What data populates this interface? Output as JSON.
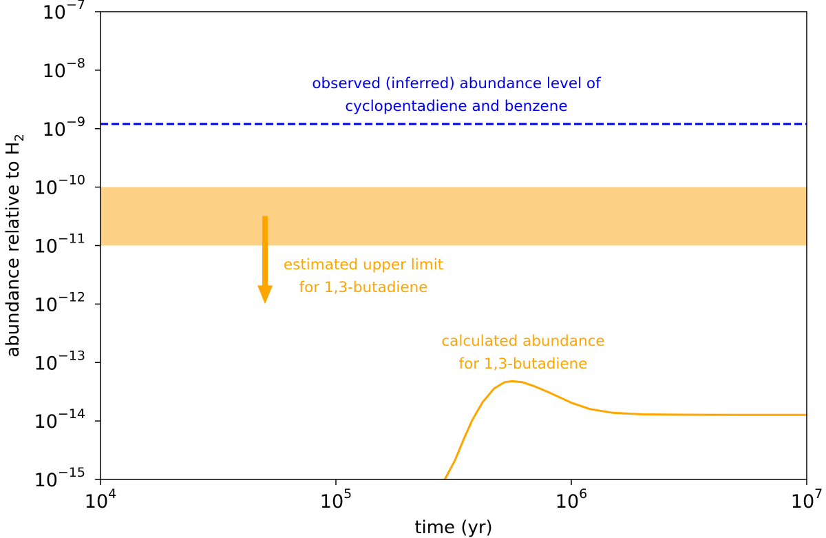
{
  "chart_data": {
    "type": "line",
    "xlabel": "time (yr)",
    "ylabel": "abundance relative to H",
    "ylabel_sub": "2",
    "xscale": "log",
    "yscale": "log",
    "xlim": [
      10000,
      10000000
    ],
    "ylim": [
      1e-15,
      1e-07
    ],
    "grid": false,
    "x_ticks": [
      {
        "value": 10000,
        "base": "10",
        "exp": "4"
      },
      {
        "value": 100000,
        "base": "10",
        "exp": "5"
      },
      {
        "value": 1000000,
        "base": "10",
        "exp": "6"
      },
      {
        "value": 10000000,
        "base": "10",
        "exp": "7"
      }
    ],
    "y_ticks": [
      {
        "value": 1e-07,
        "base": "10",
        "exp": "−7"
      },
      {
        "value": 1e-08,
        "base": "10",
        "exp": "−8"
      },
      {
        "value": 1e-09,
        "base": "10",
        "exp": "−9"
      },
      {
        "value": 1e-10,
        "base": "10",
        "exp": "−10"
      },
      {
        "value": 1e-11,
        "base": "10",
        "exp": "−11"
      },
      {
        "value": 1e-12,
        "base": "10",
        "exp": "−12"
      },
      {
        "value": 1e-13,
        "base": "10",
        "exp": "−13"
      },
      {
        "value": 1e-14,
        "base": "10",
        "exp": "−14"
      },
      {
        "value": 1e-15,
        "base": "10",
        "exp": "−15"
      }
    ],
    "observed_level": {
      "value": 1.2e-09,
      "color": "#0000ee",
      "style": "dashed",
      "label_lines": [
        "observed (inferred) abundance level of",
        "cyclopentadiene and benzene"
      ]
    },
    "upper_limit_band": {
      "y_range": [
        1e-11,
        1e-10
      ],
      "color": "#fdd185",
      "label_lines": [
        "estimated upper limit",
        "for 1,3-butadiene"
      ]
    },
    "upper_limit_arrow": {
      "x": 50000,
      "y_from": 3.2e-11,
      "y_to": 1e-12,
      "color": "#ffa500"
    },
    "series": [
      {
        "name": "calculated abundance for 1,3-butadiene",
        "label_lines": [
          "calculated abundance",
          "for 1,3-butadiene"
        ],
        "color": "#ffa500",
        "x": [
          290000,
          320000,
          350000,
          380000,
          420000,
          470000,
          520000,
          560000,
          620000,
          700000,
          800000,
          900000,
          1000000,
          1200000,
          1500000,
          2000000,
          3000000,
          5000000,
          10000000
        ],
        "y": [
          1e-15,
          2.1e-15,
          5e-15,
          1.05e-14,
          2.1e-14,
          3.6e-14,
          4.6e-14,
          4.8e-14,
          4.6e-14,
          3.9e-14,
          3.1e-14,
          2.5e-14,
          2.05e-14,
          1.6e-14,
          1.38e-14,
          1.3e-14,
          1.28e-14,
          1.27e-14,
          1.27e-14
        ]
      }
    ]
  }
}
